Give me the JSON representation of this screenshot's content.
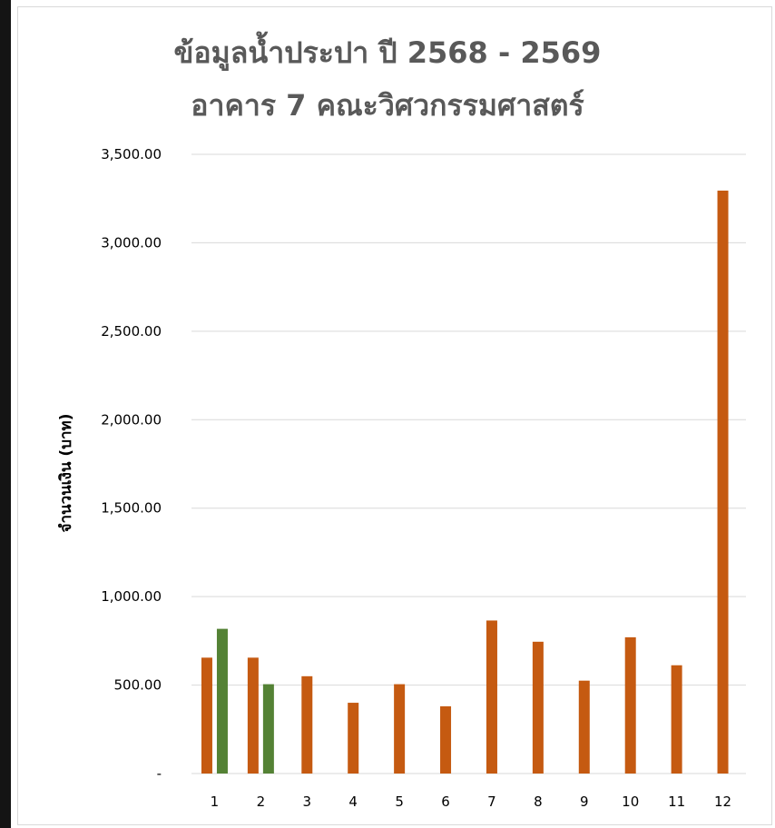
{
  "chart_data": {
    "type": "bar",
    "title_line1": "ข้อมูลน้ำประปา ปี 2568 - 2569",
    "title_line2": "อาคาร 7 คณะวิศวกรรมศาสตร์",
    "xlabel": "",
    "ylabel": "จำนวนเงิน (บาท)",
    "ylim": [
      0,
      3500
    ],
    "yticks": [
      {
        "value": 0,
        "label": "-"
      },
      {
        "value": 500,
        "label": "500.00"
      },
      {
        "value": 1000,
        "label": "1,000.00"
      },
      {
        "value": 1500,
        "label": "1,500.00"
      },
      {
        "value": 2000,
        "label": "2,000.00"
      },
      {
        "value": 2500,
        "label": "2,500.00"
      },
      {
        "value": 3000,
        "label": "3,000.00"
      },
      {
        "value": 3500,
        "label": "3,500.00"
      }
    ],
    "grid": true,
    "legend": "none",
    "categories": [
      "1",
      "2",
      "3",
      "4",
      "5",
      "6",
      "7",
      "8",
      "9",
      "10",
      "11",
      "12"
    ],
    "series": [
      {
        "color": "#c55a11",
        "values": [
          655,
          655,
          550,
          400,
          505,
          380,
          865,
          745,
          525,
          770,
          612,
          3295
        ]
      },
      {
        "color": "#548235",
        "values": [
          818,
          505,
          null,
          null,
          null,
          null,
          null,
          null,
          null,
          null,
          null,
          null
        ]
      }
    ]
  }
}
